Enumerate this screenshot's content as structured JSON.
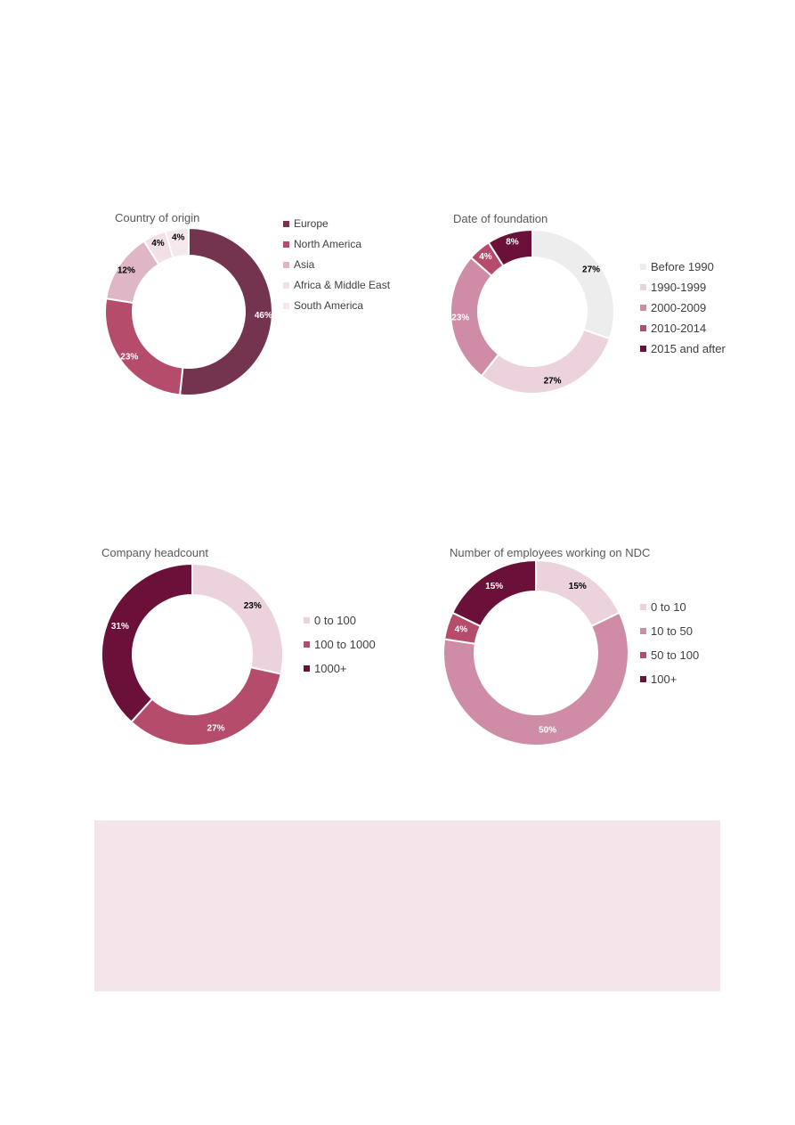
{
  "chart_data": [
    {
      "id": "country",
      "type": "pie",
      "title": "Country of origin",
      "categories": [
        "Europe",
        "North America",
        "Asia",
        "Africa & Middle East",
        "South America"
      ],
      "values": [
        46,
        23,
        12,
        4,
        4
      ],
      "labels": [
        "46%",
        "23%",
        "12%",
        "4%",
        "4%"
      ],
      "colors": [
        "#74344f",
        "#b64c6c",
        "#deb6c5",
        "#f1e0e6",
        "#f6e9ee"
      ],
      "label_colors": [
        "#ffffff",
        "#ffffff",
        "#000000",
        "#000000",
        "#000000"
      ],
      "legend_position": "right"
    },
    {
      "id": "foundation",
      "type": "pie",
      "title": "Date of foundation",
      "categories": [
        "Before 1990",
        "1990-1999",
        "2000-2009",
        "2010-2014",
        "2015 and after"
      ],
      "values": [
        27,
        27,
        23,
        4,
        8
      ],
      "labels": [
        "27%",
        "27%",
        "23%",
        "4%",
        "8%"
      ],
      "colors": [
        "#ededed",
        "#ebd2dc",
        "#cf8ca6",
        "#b64c6c",
        "#6b1039"
      ],
      "label_colors": [
        "#000000",
        "#000000",
        "#ffffff",
        "#ffffff",
        "#ffffff"
      ],
      "legend_position": "right"
    },
    {
      "id": "headcount",
      "type": "pie",
      "title": "Company headcount",
      "categories": [
        "0 to 100",
        "100 to 1000",
        "1000+"
      ],
      "values": [
        23,
        27,
        31
      ],
      "labels": [
        "23%",
        "27%",
        "31%"
      ],
      "colors": [
        "#ebd2dc",
        "#b64c6c",
        "#6b1039"
      ],
      "label_colors": [
        "#000000",
        "#ffffff",
        "#ffffff"
      ],
      "legend_position": "right"
    },
    {
      "id": "ndc",
      "type": "pie",
      "title": "Number of employees working on NDC",
      "categories": [
        "0 to 10",
        "10 to 50",
        "50 to 100",
        "100+"
      ],
      "values": [
        15,
        50,
        4,
        15
      ],
      "labels": [
        "15%",
        "50%",
        "4%",
        "15%"
      ],
      "colors": [
        "#ebd2dc",
        "#cf8ca6",
        "#b64c6c",
        "#6b1039"
      ],
      "label_colors": [
        "#000000",
        "#ffffff",
        "#ffffff",
        "#ffffff"
      ],
      "legend_position": "right"
    }
  ]
}
